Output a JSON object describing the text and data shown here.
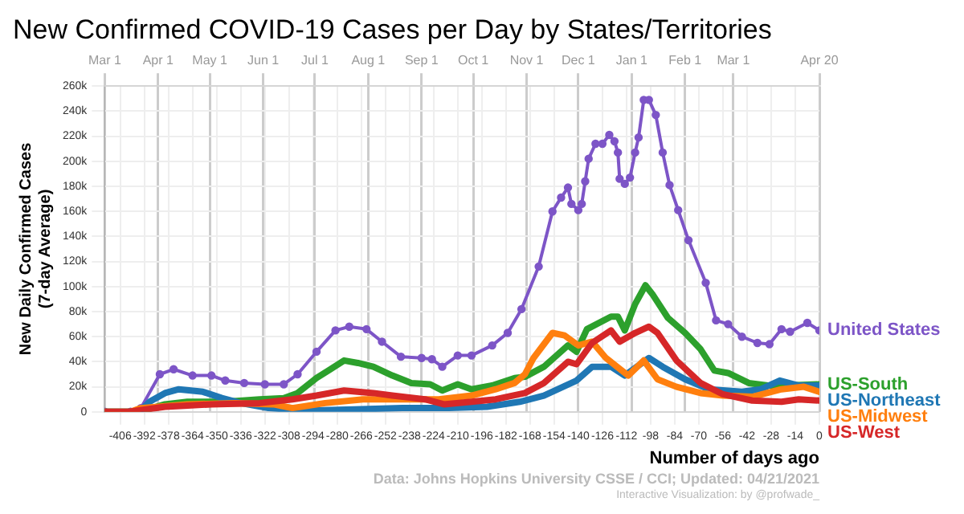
{
  "chart_data": {
    "type": "line",
    "title": "New Confirmed COVID-19 Cases per Day by States/Territories",
    "ylabel": "New Daily Confirmed Cases\n(7-day Average)",
    "xlabel": "Number of days ago",
    "annotations": [
      "Data: Johns Hopkins University CSSE / CCI; Updated: 04/21/2021",
      "Interactive Visualization: by @profwade_"
    ],
    "xlim": [
      -415,
      0
    ],
    "xticks": [
      -406,
      -392,
      -378,
      -364,
      -350,
      -336,
      -322,
      -308,
      -294,
      -280,
      -266,
      -252,
      -238,
      -224,
      -210,
      -196,
      -182,
      -168,
      -154,
      -140,
      -126,
      -112,
      -98,
      -84,
      -70,
      -56,
      -42,
      -28,
      -14,
      0
    ],
    "x2lim": [
      "2020-03-01",
      "2021-04-20"
    ],
    "x2ticks": [
      {
        "value": "2020-03-01",
        "label": "Mar 1"
      },
      {
        "value": "2020-04-01",
        "label": "Apr 1"
      },
      {
        "value": "2020-05-01",
        "label": "May 1"
      },
      {
        "value": "2020-06-01",
        "label": "Jun 1"
      },
      {
        "value": "2020-07-01",
        "label": "Jul 1"
      },
      {
        "value": "2020-08-01",
        "label": "Aug 1"
      },
      {
        "value": "2020-09-01",
        "label": "Sep 1"
      },
      {
        "value": "2020-10-01",
        "label": "Oct 1"
      },
      {
        "value": "2020-11-01",
        "label": "Nov 1"
      },
      {
        "value": "2020-12-01",
        "label": "Dec 1"
      },
      {
        "value": "2021-01-01",
        "label": "Jan 1"
      },
      {
        "value": "2021-02-01",
        "label": "Feb 1"
      },
      {
        "value": "2021-03-01",
        "label": "Mar 1"
      },
      {
        "value": "2021-04-20",
        "label": "Apr 20"
      }
    ],
    "ylim": [
      0,
      260000
    ],
    "yticks": [
      0,
      {
        "value": 20000,
        "label": "20k"
      },
      {
        "value": 40000,
        "label": "40k"
      },
      {
        "value": 60000,
        "label": "60k"
      },
      {
        "value": 80000,
        "label": "80k"
      },
      {
        "value": 100000,
        "label": "100k"
      },
      {
        "value": 120000,
        "label": "120k"
      },
      {
        "value": 140000,
        "label": "140k"
      },
      {
        "value": 160000,
        "label": "160k"
      },
      {
        "value": 180000,
        "label": "180k"
      },
      {
        "value": 200000,
        "label": "200k"
      },
      {
        "value": 220000,
        "label": "220k"
      },
      {
        "value": 240000,
        "label": "240k"
      },
      {
        "value": 260000,
        "label": "260k"
      }
    ],
    "grid": true,
    "legend": false,
    "series": [
      {
        "name": "United States",
        "color": "#7d55c7",
        "marker": "circle",
        "x": [
          -415,
          -400,
          -394,
          -383,
          -375,
          -364,
          -353,
          -345,
          -334,
          -322,
          -311,
          -303,
          -292,
          -281,
          -273,
          -263,
          -254,
          -243,
          -231,
          -225,
          -219,
          -210,
          -202,
          -190,
          -181,
          -173,
          -163,
          -155,
          -150,
          -146,
          -144,
          -140,
          -138,
          -136,
          -134,
          -130,
          -126,
          -122,
          -119,
          -117,
          -116,
          -113,
          -110,
          -107,
          -105,
          -102,
          -99,
          -95,
          -91,
          -87,
          -82,
          -76,
          -66,
          -60,
          -53,
          -45,
          -36,
          -29,
          -22,
          -17,
          -7,
          0
        ],
        "values": [
          0,
          0,
          3000,
          30000,
          34000,
          29000,
          29000,
          25000,
          23000,
          22000,
          22000,
          30000,
          48000,
          65000,
          68000,
          66000,
          56000,
          44000,
          43000,
          42000,
          36000,
          45000,
          45000,
          53000,
          63000,
          82000,
          116000,
          160000,
          171000,
          179000,
          166000,
          161000,
          166000,
          184000,
          202000,
          214000,
          214000,
          221000,
          216000,
          207000,
          186000,
          182000,
          187000,
          207000,
          219000,
          249000,
          249000,
          237000,
          207000,
          181000,
          161000,
          137000,
          103000,
          73000,
          70000,
          60000,
          55000,
          54000,
          66000,
          64000,
          71000,
          65000
        ]
      },
      {
        "name": "US-South",
        "color": "#2ca02c",
        "x": [
          -415,
          -395,
          -380,
          -367,
          -345,
          -325,
          -311,
          -303,
          -292,
          -284,
          -276,
          -268,
          -259,
          -248,
          -237,
          -226,
          -219,
          -210,
          -202,
          -190,
          -177,
          -171,
          -160,
          -146,
          -141,
          -135,
          -121,
          -117,
          -113,
          -107,
          -101,
          -97,
          -88,
          -78,
          -69,
          -61,
          -53,
          -41,
          -30,
          -19,
          0
        ],
        "values": [
          0,
          0,
          6000,
          8000,
          8000,
          10000,
          11000,
          15000,
          27000,
          34000,
          41000,
          39000,
          36000,
          29000,
          23000,
          22000,
          17000,
          22000,
          18000,
          21000,
          27000,
          28000,
          36000,
          53000,
          48000,
          66000,
          76000,
          76000,
          65000,
          86000,
          101000,
          94000,
          75000,
          63000,
          50000,
          33000,
          31000,
          23000,
          21000,
          21000,
          22000
        ]
      },
      {
        "name": "US-Northeast",
        "color": "#1f77b4",
        "x": [
          -415,
          -395,
          -389,
          -380,
          -372,
          -358,
          -347,
          -336,
          -320,
          -298,
          -270,
          -242,
          -215,
          -193,
          -174,
          -160,
          -141,
          -132,
          -121,
          -113,
          -99,
          -91,
          -78,
          -64,
          -45,
          -34,
          -23,
          -12,
          0
        ],
        "values": [
          0,
          0,
          8000,
          15000,
          18000,
          16000,
          11000,
          7000,
          3000,
          1000,
          2000,
          3000,
          3000,
          4000,
          8000,
          13000,
          25000,
          36000,
          36000,
          29000,
          43000,
          36000,
          26000,
          18000,
          16000,
          18000,
          25000,
          21000,
          21000
        ]
      },
      {
        "name": "US-Midwest",
        "color": "#ff7f0e",
        "x": [
          -415,
          -400,
          -394,
          -367,
          -339,
          -317,
          -306,
          -287,
          -265,
          -243,
          -221,
          -202,
          -188,
          -177,
          -171,
          -166,
          -155,
          -148,
          -140,
          -132,
          -124,
          -111,
          -102,
          -94,
          -83,
          -69,
          -56,
          -39,
          -22,
          -9,
          0
        ],
        "values": [
          0,
          0,
          3000,
          6000,
          7000,
          6000,
          3000,
          7000,
          10000,
          10000,
          10000,
          13000,
          18000,
          23000,
          30000,
          43000,
          63000,
          61000,
          53000,
          56000,
          43000,
          29000,
          41000,
          26000,
          20000,
          15000,
          13000,
          12000,
          18000,
          20000,
          16000
        ]
      },
      {
        "name": "US-West",
        "color": "#d62728",
        "x": [
          -415,
          -401,
          -380,
          -353,
          -325,
          -306,
          -292,
          -276,
          -259,
          -248,
          -229,
          -218,
          -202,
          -188,
          -171,
          -160,
          -146,
          -141,
          -132,
          -121,
          -116,
          -107,
          -99,
          -94,
          -83,
          -69,
          -56,
          -39,
          -22,
          -12,
          0
        ],
        "values": [
          0,
          0,
          4000,
          6000,
          7000,
          10000,
          13000,
          17000,
          15000,
          13000,
          10000,
          6000,
          8000,
          10000,
          15000,
          23000,
          40000,
          38000,
          55000,
          65000,
          56000,
          63000,
          68000,
          63000,
          41000,
          23000,
          14000,
          9000,
          8000,
          10000,
          9000
        ]
      }
    ]
  }
}
